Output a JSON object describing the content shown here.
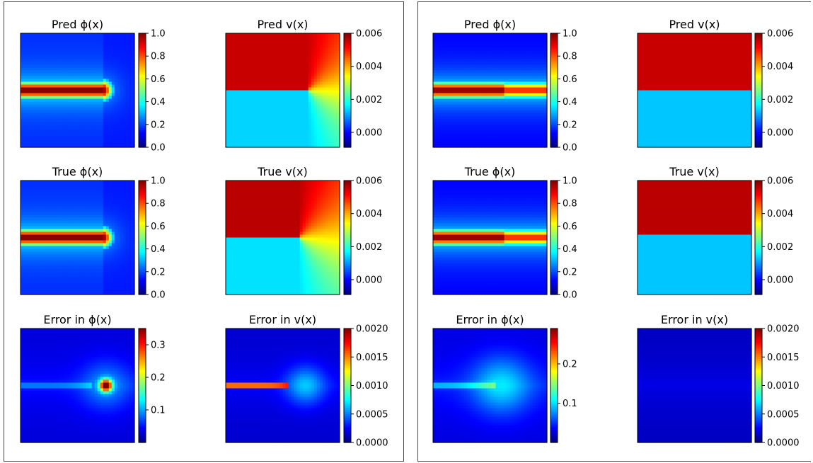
{
  "chart_data": [
    {
      "type": "heatmap",
      "panels": [
        {
          "id": "pred-phi",
          "title": "Pred ϕ(x)",
          "field": "phi_full",
          "vmin": 0,
          "vmax": 1,
          "ticks": [
            "0.0",
            "0.2",
            "0.4",
            "0.6",
            "0.8",
            "1.0"
          ],
          "tickValues": [
            0,
            0.2,
            0.4,
            0.6,
            0.8,
            1.0
          ]
        },
        {
          "id": "pred-v",
          "title": "Pred v(x)",
          "field": "v_full",
          "vmin": -0.0009,
          "vmax": 0.006,
          "ticks": [
            "0.000",
            "0.002",
            "0.004",
            "0.006"
          ],
          "tickValues": [
            0,
            0.002,
            0.004,
            0.006
          ]
        },
        {
          "id": "true-phi",
          "title": "True ϕ(x)",
          "field": "phi_full",
          "vmin": 0,
          "vmax": 1,
          "ticks": [
            "0.0",
            "0.2",
            "0.4",
            "0.6",
            "0.8",
            "1.0"
          ],
          "tickValues": [
            0,
            0.2,
            0.4,
            0.6,
            0.8,
            1.0
          ]
        },
        {
          "id": "true-v",
          "title": "True v(x)",
          "field": "v_full_true",
          "vmin": -0.0009,
          "vmax": 0.006,
          "ticks": [
            "0.000",
            "0.002",
            "0.004",
            "0.006"
          ],
          "tickValues": [
            0,
            0.002,
            0.004,
            0.006
          ]
        },
        {
          "id": "err-phi",
          "title": "Error in ϕ(x)",
          "field": "err_phi_a",
          "vmin": 0,
          "vmax": 0.35,
          "ticks": [
            "0.1",
            "0.2",
            "0.3"
          ],
          "tickValues": [
            0.1,
            0.2,
            0.3
          ]
        },
        {
          "id": "err-v",
          "title": "Error in v(x)",
          "field": "err_v_a",
          "vmin": 0,
          "vmax": 0.002,
          "ticks": [
            "0.0000",
            "0.0005",
            "0.0010",
            "0.0015",
            "0.0020"
          ],
          "tickValues": [
            0,
            0.0005,
            0.001,
            0.0015,
            0.002
          ]
        }
      ]
    },
    {
      "type": "heatmap",
      "panels": [
        {
          "id": "pred-phi",
          "title": "Pred ϕ(x)",
          "field": "phi_strip",
          "vmin": 0,
          "vmax": 1,
          "ticks": [
            "0.0",
            "0.2",
            "0.4",
            "0.6",
            "0.8",
            "1.0"
          ],
          "tickValues": [
            0,
            0.2,
            0.4,
            0.6,
            0.8,
            1.0
          ]
        },
        {
          "id": "pred-v",
          "title": "Pred v(x)",
          "field": "v_flat",
          "vmin": -0.0009,
          "vmax": 0.006,
          "ticks": [
            "0.000",
            "0.002",
            "0.004",
            "0.006"
          ],
          "tickValues": [
            0,
            0.002,
            0.004,
            0.006
          ]
        },
        {
          "id": "true-phi",
          "title": "True ϕ(x)",
          "field": "phi_strip",
          "vmin": 0,
          "vmax": 1,
          "ticks": [
            "0.0",
            "0.2",
            "0.4",
            "0.6",
            "0.8",
            "1.0"
          ],
          "tickValues": [
            0,
            0.2,
            0.4,
            0.6,
            0.8,
            1.0
          ]
        },
        {
          "id": "true-v",
          "title": "True v(x)",
          "field": "v_flat_true",
          "vmin": -0.0009,
          "vmax": 0.006,
          "ticks": [
            "0.000",
            "0.002",
            "0.004",
            "0.006"
          ],
          "tickValues": [
            0,
            0.002,
            0.004,
            0.006
          ]
        },
        {
          "id": "err-phi",
          "title": "Error in ϕ(x)",
          "field": "err_phi_b",
          "vmin": 0,
          "vmax": 0.29,
          "ticks": [
            "0.1",
            "0.2"
          ],
          "tickValues": [
            0.1,
            0.2
          ]
        },
        {
          "id": "err-v",
          "title": "Error in v(x)",
          "field": "err_v_b",
          "vmin": 0,
          "vmax": 0.002,
          "ticks": [
            "0.0000",
            "0.0005",
            "0.0010",
            "0.0015",
            "0.0020"
          ],
          "tickValues": [
            0,
            0.0005,
            0.001,
            0.0015,
            0.002
          ]
        }
      ]
    }
  ]
}
